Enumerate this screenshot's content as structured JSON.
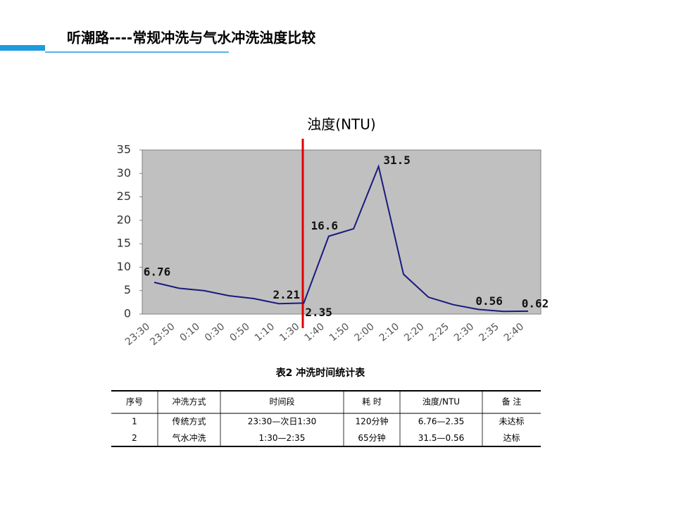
{
  "header": {
    "title": "听潮路----常规冲洗与气水冲洗浊度比较"
  },
  "chart_data": {
    "type": "line",
    "title": "浊度(NTU)",
    "categories": [
      "23:30",
      "23:50",
      "0:10",
      "0:30",
      "0:50",
      "1:10",
      "1:30",
      "1:40",
      "1:50",
      "2:00",
      "2:10",
      "2:20",
      "2:25",
      "2:30",
      "2:35",
      "2:40"
    ],
    "series": [
      {
        "name": "浊度",
        "color": "#1a1a80",
        "values": [
          6.76,
          5.5,
          5.0,
          3.9,
          3.3,
          2.21,
          2.35,
          16.6,
          18.2,
          31.5,
          8.5,
          3.6,
          2.0,
          1.0,
          0.56,
          0.62
        ],
        "value_labels": [
          "6.76",
          null,
          null,
          null,
          null,
          "2.21",
          "2.35",
          "16.6",
          null,
          "31.5",
          null,
          null,
          null,
          null,
          "0.56",
          "0.62"
        ]
      }
    ],
    "ylim": [
      0,
      35
    ],
    "yticks": [
      0,
      5,
      10,
      15,
      20,
      25,
      30,
      35
    ],
    "grid": false
  },
  "table": {
    "caption": "表2  冲洗时间统计表",
    "header": [
      "序号",
      "冲洗方式",
      "时间段",
      "耗  时",
      "浊度/NTU",
      "备  注"
    ],
    "rows": [
      [
        "1",
        "传统方式",
        "23:30—次日1:30",
        "120分钟",
        "6.76—2.35",
        "未达标"
      ],
      [
        "2",
        "气水冲洗",
        "1:30—2:35",
        "65分钟",
        "31.5—0.56",
        "达标"
      ]
    ]
  }
}
